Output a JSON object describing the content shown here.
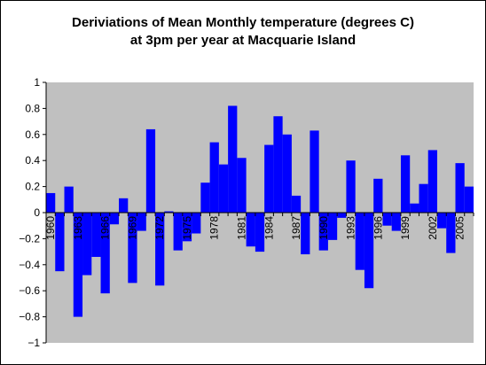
{
  "chart_data": {
    "type": "bar",
    "title_lines": [
      "Deriviations of Mean Monthly temperature (degrees C)",
      "at 3pm per year at Macquarie Island"
    ],
    "xlabel": "",
    "ylabel": "",
    "ylim": [
      -1,
      1
    ],
    "y_ticks": [
      "1",
      "0.8",
      "0.6",
      "0.4",
      "0.2",
      "0",
      "−0.2",
      "−0.4",
      "−0.6",
      "−0.8",
      "−1"
    ],
    "x_tick_labels": [
      "1960",
      "1963",
      "1966",
      "1969",
      "1972",
      "1975",
      "1978",
      "1981",
      "1984",
      "1987",
      "1990",
      "1993",
      "1996",
      "1999",
      "2002",
      "2005"
    ],
    "categories": [
      "1960",
      "1961",
      "1962",
      "1963",
      "1964",
      "1965",
      "1966",
      "1967",
      "1968",
      "1969",
      "1970",
      "1971",
      "1972",
      "1973",
      "1974",
      "1975",
      "1976",
      "1977",
      "1978",
      "1979",
      "1980",
      "1981",
      "1982",
      "1983",
      "1984",
      "1985",
      "1986",
      "1987",
      "1988",
      "1989",
      "1990",
      "1991",
      "1992",
      "1993",
      "1994",
      "1995",
      "1996",
      "1997",
      "1998",
      "1999",
      "2000",
      "2001",
      "2002",
      "2003",
      "2004",
      "2005",
      "2006"
    ],
    "values": [
      0.15,
      -0.45,
      0.2,
      -0.8,
      -0.48,
      -0.34,
      -0.62,
      -0.09,
      0.11,
      -0.54,
      -0.14,
      0.64,
      -0.56,
      0.01,
      -0.29,
      -0.22,
      -0.16,
      0.23,
      0.54,
      0.37,
      0.82,
      0.42,
      -0.26,
      -0.3,
      0.52,
      0.74,
      0.6,
      0.13,
      -0.32,
      0.63,
      -0.29,
      -0.21,
      -0.04,
      0.4,
      -0.44,
      -0.58,
      0.26,
      -0.1,
      -0.14,
      0.44,
      0.07,
      0.22,
      0.48,
      -0.12,
      -0.31,
      0.38,
      0.2
    ],
    "grid": false,
    "legend": "none",
    "colors": {
      "bar": "#0000FF",
      "plot_background": "#C0C0C0",
      "frame_background": "#FFFFFF",
      "axis": "#000000"
    }
  }
}
